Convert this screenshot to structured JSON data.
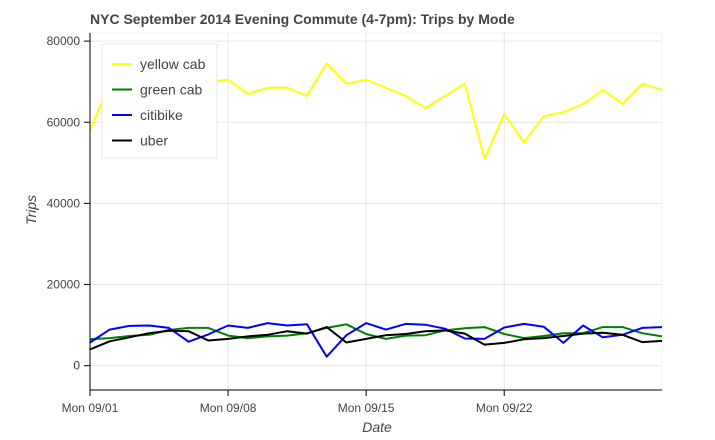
{
  "chart_data": {
    "type": "line",
    "title": "NYC September 2014 Evening Commute (4-7pm): Trips by Mode",
    "xlabel": "Date",
    "ylabel": "Trips",
    "x_tick_labels": [
      "Mon 09/01",
      "Mon 09/08",
      "Mon 09/15",
      "Mon 09/22"
    ],
    "x_tick_days": [
      1,
      8,
      15,
      22
    ],
    "y_ticks": [
      0,
      20000,
      40000,
      60000,
      80000
    ],
    "y_tick_labels": [
      "0",
      "20000",
      "40000",
      "60000",
      "80000"
    ],
    "xlim_days": [
      1,
      30
    ],
    "ylim": [
      -6000,
      82000
    ],
    "grid": true,
    "legend_position": "top-left",
    "x_days": [
      1,
      2,
      3,
      4,
      5,
      6,
      7,
      8,
      9,
      10,
      11,
      12,
      13,
      14,
      15,
      16,
      17,
      18,
      19,
      20,
      21,
      22,
      23,
      24,
      25,
      26,
      27,
      28,
      29,
      30
    ],
    "series": [
      {
        "name": "yellow cab",
        "color": "#ffff00",
        "values": [
          58000,
          69500,
          70000,
          70500,
          71000,
          71000,
          70000,
          70500,
          67000,
          68500,
          68500,
          66500,
          74500,
          69500,
          70500,
          68500,
          66500,
          63500,
          66500,
          69500,
          51000,
          62000,
          55000,
          61500,
          62500,
          64500,
          68000,
          64500,
          69500,
          68000
        ]
      },
      {
        "name": "green cab",
        "color": "#008000",
        "values": [
          6500,
          6800,
          7300,
          7600,
          8800,
          9300,
          9300,
          7400,
          6800,
          7200,
          7400,
          8000,
          9300,
          10200,
          7800,
          6600,
          7400,
          7500,
          8700,
          9200,
          9500,
          7800,
          6800,
          7300,
          8000,
          8000,
          9500,
          9500,
          8000,
          7200
        ]
      },
      {
        "name": "citibike",
        "color": "#0000ff",
        "values": [
          5700,
          8900,
          9800,
          9900,
          9300,
          5900,
          7700,
          9900,
          9300,
          10500,
          9900,
          10200,
          2200,
          7500,
          10500,
          8900,
          10300,
          10100,
          9100,
          6700,
          6600,
          9400,
          10300,
          9600,
          5600,
          9900,
          7000,
          7600,
          9300,
          9500
        ]
      },
      {
        "name": "uber",
        "color": "#000000",
        "values": [
          4000,
          6000,
          7000,
          8000,
          8600,
          8500,
          6200,
          6600,
          7200,
          7600,
          8500,
          7900,
          9500,
          5700,
          6600,
          7500,
          7800,
          8500,
          8700,
          7900,
          5200,
          5600,
          6500,
          6800,
          7300,
          7900,
          8100,
          7600,
          5800,
          6100
        ]
      }
    ]
  }
}
